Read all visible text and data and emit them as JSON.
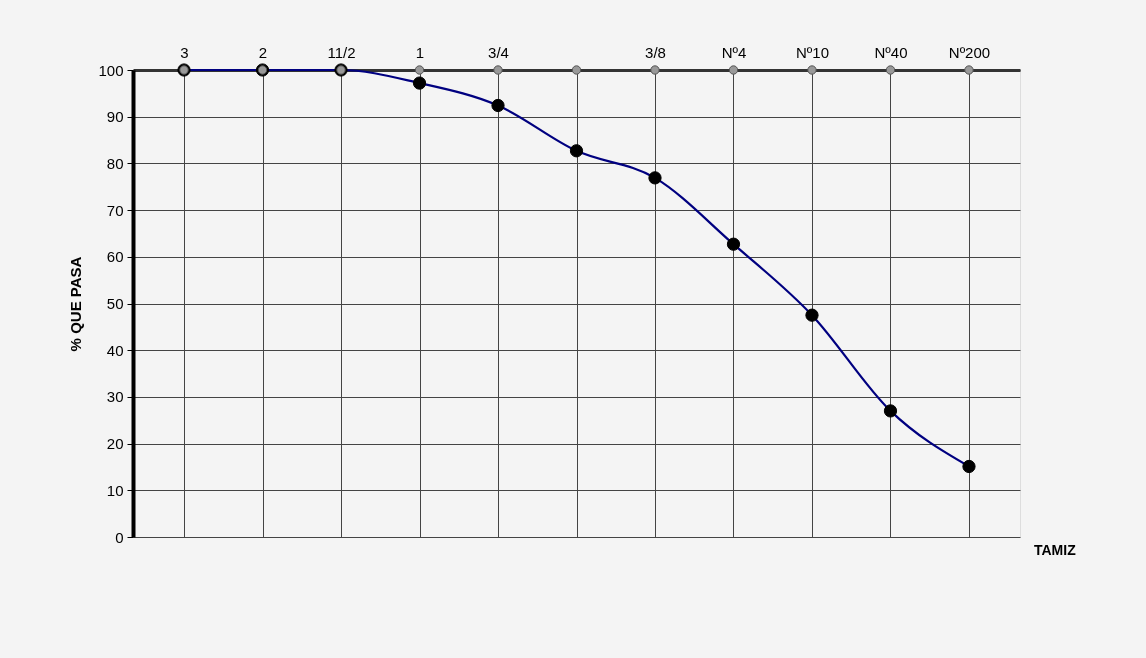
{
  "chart_data": {
    "type": "line",
    "xlabel": "TAMIZ",
    "ylabel": "% QUE PASA",
    "categories": [
      "3",
      "2",
      "11/2",
      "1",
      "3/4",
      null,
      "3/8",
      "Nº4",
      "Nº10",
      "Nº40",
      "Nº200"
    ],
    "series": [
      {
        "color": "#000080",
        "line_style": "solid",
        "values": [
          100,
          100,
          100,
          97.2,
          92.4,
          82.7,
          76.9,
          62.7,
          47.5,
          27.0,
          15.1
        ]
      },
      {
        "type": "scatter",
        "color": "#000000",
        "marker": "circle",
        "values": [
          100,
          100,
          100,
          97.2,
          92.4,
          82.7,
          76.9,
          62.7,
          47.5,
          27.0,
          15.1
        ]
      },
      {
        "type": "scatter",
        "color": "#999999",
        "marker": "circle",
        "values": [
          100,
          100,
          100,
          100,
          100,
          100,
          100,
          100,
          100,
          100,
          100
        ]
      }
    ],
    "ylim": [
      0,
      100
    ],
    "yticks": [
      0,
      10,
      20,
      30,
      40,
      50,
      60,
      70,
      80,
      90,
      100
    ],
    "grid": true
  }
}
